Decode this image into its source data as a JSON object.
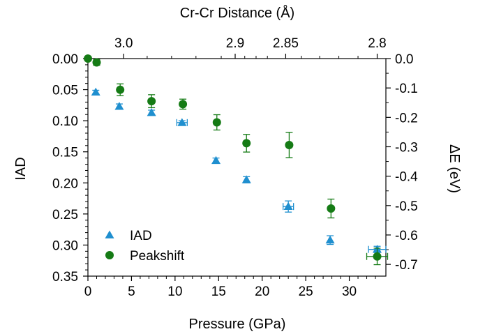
{
  "chart_data": {
    "type": "scatter",
    "xlabel": "Pressure (GPa)",
    "ylabel": "IAD",
    "y2label": "ΔE (eV)",
    "x2label": "Cr-Cr Distance (Å)",
    "xlim": [
      0,
      34.2
    ],
    "ylim": [
      0.35,
      0.0
    ],
    "y2lim": [
      -0.74,
      0.0
    ],
    "x_ticks": [
      0,
      5,
      10,
      15,
      20,
      25,
      30
    ],
    "x_tick_labels": [
      "0",
      "5",
      "10",
      "15",
      "20",
      "25",
      "30"
    ],
    "y_ticks": [
      0.0,
      0.05,
      0.1,
      0.15,
      0.2,
      0.25,
      0.3,
      0.35
    ],
    "y_tick_labels": [
      "0.00",
      "0.05",
      "0.10",
      "0.15",
      "0.20",
      "0.25",
      "0.30",
      "0.35"
    ],
    "y2_ticks": [
      0.0,
      -0.1,
      -0.2,
      -0.3,
      -0.4,
      -0.5,
      -0.6,
      -0.7
    ],
    "y2_tick_labels": [
      "0.0",
      "-0.1",
      "-0.2",
      "-0.3",
      "-0.4",
      "-0.5",
      "-0.6",
      "-0.7"
    ],
    "x2_ticks": [
      {
        "label": "3.0",
        "pressure": 4.1
      },
      {
        "label": "2.9",
        "pressure": 16.9
      },
      {
        "label": "2.85",
        "pressure": 22.7
      },
      {
        "label": "2.8",
        "pressure": 33.2
      }
    ],
    "series": [
      {
        "name": "IAD",
        "axis": "left",
        "marker": "triangle",
        "color": "#1f8fcf",
        "points": [
          {
            "x": 0.9,
            "y": 0.054,
            "yerr": 0.003,
            "xerr": 0.0
          },
          {
            "x": 3.6,
            "y": 0.077,
            "yerr": 0.004,
            "xerr": 0.0
          },
          {
            "x": 7.3,
            "y": 0.087,
            "yerr": 0.004,
            "xerr": 0.0
          },
          {
            "x": 10.8,
            "y": 0.103,
            "yerr": 0.003,
            "xerr": 0.6
          },
          {
            "x": 14.7,
            "y": 0.164,
            "yerr": 0.004,
            "xerr": 0.0
          },
          {
            "x": 18.2,
            "y": 0.195,
            "yerr": 0.005,
            "xerr": 0.0
          },
          {
            "x": 23.0,
            "y": 0.238,
            "yerr": 0.009,
            "xerr": 0.6
          },
          {
            "x": 27.8,
            "y": 0.292,
            "yerr": 0.007,
            "xerr": 0.0
          },
          {
            "x": 33.2,
            "y": 0.307,
            "yerr": 0.005,
            "xerr": 1.0
          }
        ]
      },
      {
        "name": "Peakshift",
        "axis": "right",
        "marker": "circle",
        "color": "#157b15",
        "points": [
          {
            "x": 0.0,
            "y": 0.0,
            "yerr": 0.0,
            "xerr": 0.0
          },
          {
            "x": 1.0,
            "y": -0.013,
            "yerr": 0.01,
            "xerr": 0.0
          },
          {
            "x": 3.7,
            "y": -0.106,
            "yerr": 0.02,
            "xerr": 0.0
          },
          {
            "x": 7.3,
            "y": -0.145,
            "yerr": 0.022,
            "xerr": 0.0
          },
          {
            "x": 10.9,
            "y": -0.155,
            "yerr": 0.017,
            "xerr": 0.0
          },
          {
            "x": 14.8,
            "y": -0.217,
            "yerr": 0.026,
            "xerr": 0.0
          },
          {
            "x": 18.2,
            "y": -0.288,
            "yerr": 0.03,
            "xerr": 0.0
          },
          {
            "x": 23.1,
            "y": -0.294,
            "yerr": 0.043,
            "xerr": 0.0
          },
          {
            "x": 27.9,
            "y": -0.51,
            "yerr": 0.032,
            "xerr": 0.0
          },
          {
            "x": 33.2,
            "y": -0.673,
            "yerr": 0.028,
            "xerr": 1.2
          }
        ]
      }
    ],
    "legend": {
      "position": "bottom-left"
    },
    "grid": false
  }
}
